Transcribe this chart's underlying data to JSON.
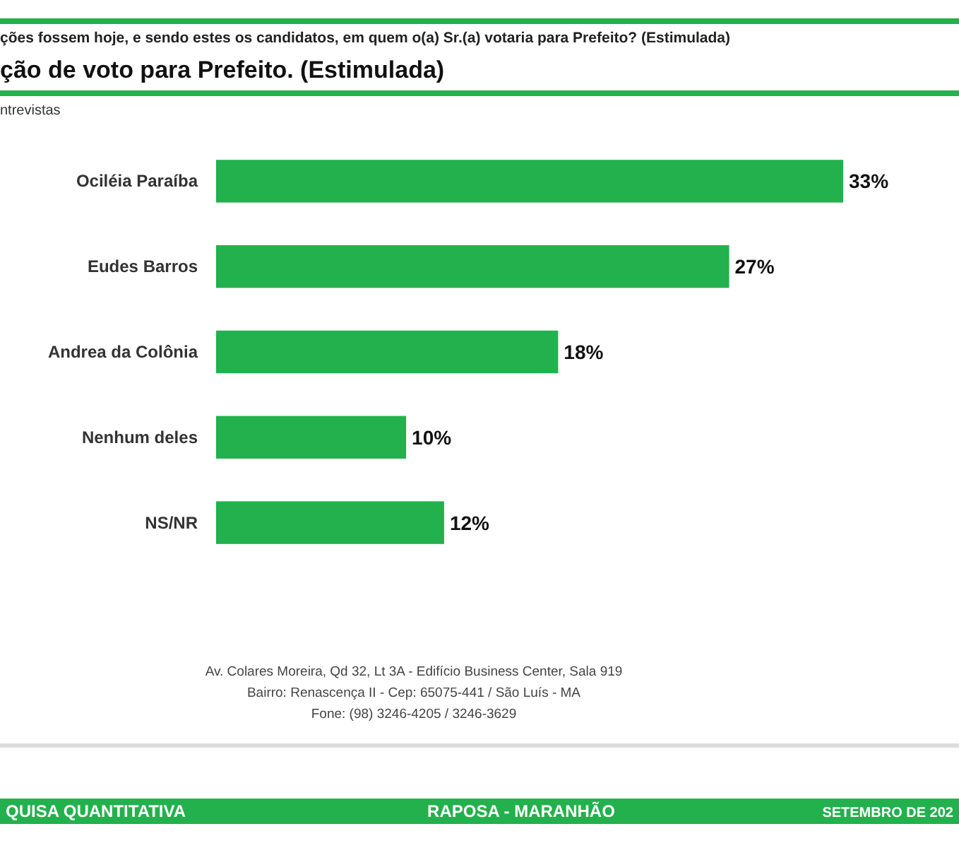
{
  "chart_data": {
    "type": "bar",
    "orientation": "horizontal",
    "title": "ção de voto para Prefeito. (Estimulada)",
    "subtitle": "ções fossem hoje, e sendo estes os candidatos, em quem o(a) Sr.(a) votaria para Prefeito? (Estimulada)",
    "categories": [
      "Ociléia Paraíba",
      "Eudes Barros",
      "Andrea da Colônia",
      "Nenhum deles",
      "NS/NR"
    ],
    "values": [
      33,
      27,
      18,
      10,
      12
    ],
    "value_labels": [
      "33%",
      "27%",
      "18%",
      "10%",
      "12%"
    ],
    "color": "#22b14c",
    "annotations": [
      "ntrevistas",
      "Av. Colares Moreira, Qd 32, Lt 3A - Edifício Business Center, Sala 919",
      "Bairro: Renascença II - Cep: 65075-441 / São Luís - MA",
      "Fone: (98) 3246-4205 / 3246-3629",
      "QUISA QUANTITATIVA",
      "RAPOSA - MARANHÃO",
      "SETEMBRO DE 202"
    ]
  }
}
